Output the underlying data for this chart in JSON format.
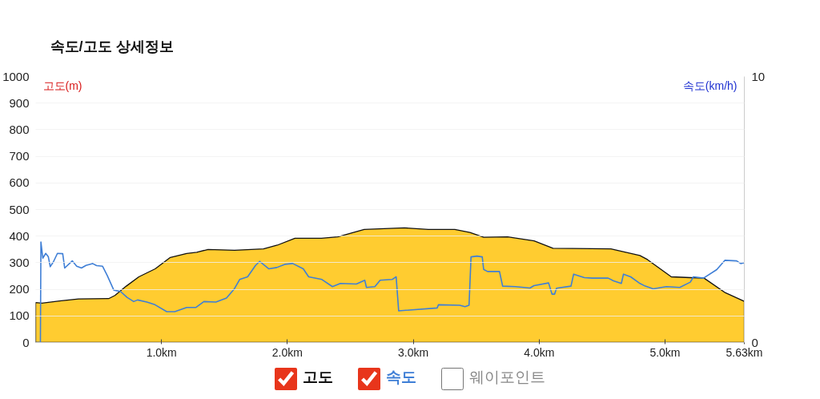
{
  "chart_data": {
    "type": "area",
    "title": "속도/고도 상세정보",
    "ylabel": "고도(m)",
    "y2label": "속도(km/h)",
    "xlim": [
      0,
      5.63
    ],
    "xticks": [
      {
        "value": 1,
        "label": "1.0km"
      },
      {
        "value": 2,
        "label": "2.0km"
      },
      {
        "value": 3,
        "label": "3.0km"
      },
      {
        "value": 4,
        "label": "4.0km"
      },
      {
        "value": 5,
        "label": "5.0km"
      },
      {
        "value": 5.63,
        "label": "5.63km"
      }
    ],
    "ylim": [
      0,
      1000
    ],
    "yticks": [
      0,
      100,
      200,
      300,
      400,
      500,
      600,
      700,
      800,
      900,
      1000
    ],
    "y2lim": [
      0,
      10
    ],
    "y2ticks": [
      0,
      10
    ],
    "grid": "y",
    "legend": "bottom",
    "annotations": [
      "웨이포인트"
    ],
    "series": [
      {
        "name": "고도",
        "color": "#ffcc30",
        "x": [
          0,
          0.05,
          0.19,
          0.34,
          0.58,
          0.63,
          0.72,
          0.82,
          0.95,
          1.07,
          1.2,
          1.28,
          1.37,
          1.58,
          1.81,
          1.92,
          2.06,
          2.27,
          2.4,
          2.61,
          2.93,
          3.12,
          3.33,
          3.45,
          3.56,
          3.75,
          3.96,
          4.11,
          4.57,
          4.8,
          4.86,
          5.05,
          5.2,
          5.31,
          5.48,
          5.63
        ],
        "values": [
          150,
          148,
          156,
          164,
          165,
          177,
          212,
          247,
          277,
          320,
          335,
          339,
          350,
          347,
          352,
          366,
          392,
          392,
          397,
          425,
          431,
          425,
          425,
          414,
          396,
          397,
          382,
          354,
          352,
          327,
          312,
          247,
          244,
          242,
          187,
          155
        ]
      },
      {
        "name": "속도",
        "type": "line",
        "axis": "y2",
        "color": "#3f7fd6",
        "x": [
          0,
          0.038,
          0.042,
          0.057,
          0.08,
          0.101,
          0.116,
          0.143,
          0.173,
          0.215,
          0.231,
          0.291,
          0.326,
          0.364,
          0.4,
          0.452,
          0.484,
          0.531,
          0.569,
          0.621,
          0.674,
          0.726,
          0.779,
          0.81,
          0.884,
          0.948,
          1.042,
          1.105,
          1.2,
          1.274,
          1.337,
          1.432,
          1.516,
          1.579,
          1.621,
          1.684,
          1.747,
          1.779,
          1.853,
          1.916,
          1.979,
          2.042,
          2.126,
          2.169,
          2.274,
          2.358,
          2.421,
          2.548,
          2.615,
          2.628,
          2.695,
          2.737,
          2.832,
          2.864,
          2.884,
          3.19,
          3.2,
          3.369,
          3.411,
          3.443,
          3.459,
          3.506,
          3.548,
          3.559,
          3.59,
          3.685,
          3.71,
          3.811,
          3.927,
          3.959,
          4.075,
          4.102,
          4.123,
          4.138,
          4.253,
          4.274,
          4.359,
          4.422,
          4.548,
          4.59,
          4.653,
          4.67,
          4.727,
          4.801,
          4.843,
          4.906,
          5.011,
          5.117,
          5.201,
          5.226,
          5.306,
          5.411,
          5.475,
          5.569,
          5.601,
          5.63
        ],
        "values": [
          0,
          0,
          3.78,
          3.17,
          3.35,
          3.22,
          2.85,
          3.05,
          3.35,
          3.34,
          2.8,
          3.07,
          2.87,
          2.8,
          2.9,
          2.97,
          2.89,
          2.87,
          2.52,
          1.97,
          1.92,
          1.7,
          1.54,
          1.6,
          1.52,
          1.42,
          1.16,
          1.16,
          1.32,
          1.32,
          1.54,
          1.52,
          1.67,
          2.02,
          2.37,
          2.47,
          2.9,
          3.05,
          2.77,
          2.82,
          2.94,
          2.97,
          2.77,
          2.47,
          2.37,
          2.1,
          2.22,
          2.2,
          2.34,
          2.07,
          2.1,
          2.34,
          2.37,
          2.47,
          1.19,
          1.3,
          1.42,
          1.4,
          1.35,
          1.4,
          3.22,
          3.25,
          3.22,
          2.75,
          2.67,
          2.67,
          2.12,
          2.1,
          2.05,
          2.14,
          2.24,
          1.82,
          1.82,
          2.04,
          2.12,
          2.57,
          2.44,
          2.42,
          2.42,
          2.32,
          2.22,
          2.57,
          2.47,
          2.22,
          2.12,
          2.02,
          2.1,
          2.07,
          2.27,
          2.47,
          2.42,
          2.74,
          3.09,
          3.07,
          2.97,
          3.0
        ]
      }
    ]
  }
}
